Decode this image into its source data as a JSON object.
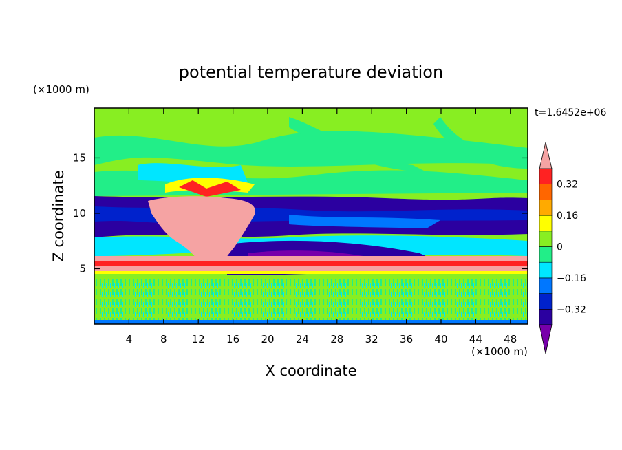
{
  "chart_data": {
    "type": "heatmap",
    "title": "potential temperature deviation",
    "xlabel": "X coordinate",
    "ylabel": "Z coordinate",
    "x_unit": "(×1000 m)",
    "y_unit": "(×1000 m)",
    "time_label": "t=1.6452e+06",
    "xlim": [
      0,
      50
    ],
    "ylim": [
      0,
      19.5
    ],
    "x_ticks": [
      4,
      8,
      12,
      16,
      20,
      24,
      28,
      32,
      36,
      40,
      44,
      48
    ],
    "y_ticks": [
      5,
      10,
      15
    ],
    "colorbar": {
      "levels": [
        -0.4,
        -0.32,
        -0.24,
        -0.16,
        -0.08,
        0,
        0.08,
        0.16,
        0.24,
        0.32,
        0.4
      ],
      "tick_labels": [
        "0.32",
        "0.16",
        "0",
        "−0.16",
        "−0.32"
      ],
      "tick_values": [
        0.32,
        0.16,
        0,
        -0.16,
        -0.32
      ],
      "colors": [
        "#7700aa",
        "#2b00a0",
        "#0022cc",
        "#0077ff",
        "#00e6ff",
        "#22ee88",
        "#88ee22",
        "#ffff00",
        "#ffaa00",
        "#ff6600",
        "#ff2222",
        "#f5a3a3"
      ],
      "extend": "both"
    }
  }
}
